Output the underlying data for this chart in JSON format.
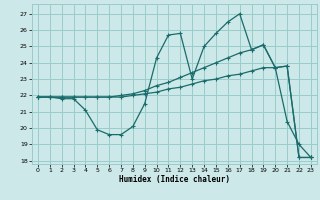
{
  "title": "",
  "xlabel": "Humidex (Indice chaleur)",
  "ylabel": "",
  "background_color": "#cce8e8",
  "grid_color": "#99cccc",
  "line_color": "#1a6b6b",
  "xlim": [
    -0.5,
    23.5
  ],
  "ylim": [
    17.8,
    27.6
  ],
  "yticks": [
    18,
    19,
    20,
    21,
    22,
    23,
    24,
    25,
    26,
    27
  ],
  "xticks": [
    0,
    1,
    2,
    3,
    4,
    5,
    6,
    7,
    8,
    9,
    10,
    11,
    12,
    13,
    14,
    15,
    16,
    17,
    18,
    19,
    20,
    21,
    22,
    23
  ],
  "line1_x": [
    0,
    1,
    2,
    3,
    4,
    5,
    6,
    7,
    8,
    9,
    10,
    11,
    12,
    13,
    14,
    15,
    16,
    17,
    18,
    19,
    20,
    21,
    22,
    23
  ],
  "line1_y": [
    21.9,
    21.9,
    21.8,
    21.8,
    21.1,
    19.9,
    19.6,
    19.6,
    20.1,
    21.5,
    24.3,
    25.7,
    25.8,
    23.0,
    25.0,
    25.8,
    26.5,
    27.0,
    24.8,
    25.1,
    23.7,
    20.4,
    19.0,
    18.2
  ],
  "line2_x": [
    0,
    1,
    2,
    3,
    4,
    5,
    6,
    7,
    8,
    9,
    10,
    11,
    12,
    13,
    14,
    15,
    16,
    17,
    18,
    19,
    20,
    21,
    22,
    23
  ],
  "line2_y": [
    21.9,
    21.9,
    21.9,
    21.9,
    21.9,
    21.9,
    21.9,
    22.0,
    22.1,
    22.3,
    22.6,
    22.8,
    23.1,
    23.4,
    23.7,
    24.0,
    24.3,
    24.6,
    24.8,
    25.1,
    23.7,
    23.8,
    18.2,
    18.2
  ],
  "line3_x": [
    0,
    1,
    2,
    3,
    4,
    5,
    6,
    7,
    8,
    9,
    10,
    11,
    12,
    13,
    14,
    15,
    16,
    17,
    18,
    19,
    20,
    21,
    22,
    23
  ],
  "line3_y": [
    21.9,
    21.9,
    21.9,
    21.9,
    21.9,
    21.9,
    21.9,
    21.9,
    22.0,
    22.1,
    22.2,
    22.4,
    22.5,
    22.7,
    22.9,
    23.0,
    23.2,
    23.3,
    23.5,
    23.7,
    23.7,
    23.8,
    18.2,
    18.2
  ]
}
